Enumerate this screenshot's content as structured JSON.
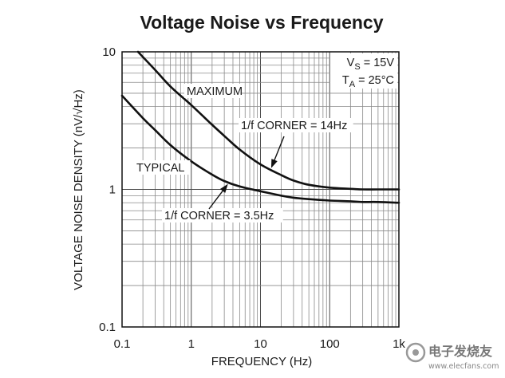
{
  "chart_data": {
    "type": "line",
    "title": "Voltage Noise vs Frequency",
    "xlabel": "FREQUENCY (Hz)",
    "ylabel": "VOLTAGE NOISE DENSITY (nV/√Hz)",
    "xscale": "log",
    "yscale": "log",
    "xlim": [
      0.1,
      1000
    ],
    "ylim": [
      0.1,
      10
    ],
    "grid": true,
    "x_ticks": [
      0.1,
      1,
      10,
      100,
      1000
    ],
    "x_tick_labels": [
      "0.1",
      "1",
      "10",
      "100",
      "1k"
    ],
    "y_ticks": [
      0.1,
      1,
      10
    ],
    "y_tick_labels": [
      "0.1",
      "1",
      "10"
    ],
    "conditions": [
      {
        "symbol": "V",
        "sub": "S",
        "value": " = 15V"
      },
      {
        "symbol": "T",
        "sub": "A",
        "value": " = 25°C"
      }
    ],
    "series": [
      {
        "name": "MAXIMUM",
        "x": [
          0.17,
          0.3,
          0.5,
          1,
          2,
          3,
          5,
          10,
          20,
          30,
          50,
          100,
          200,
          300,
          500,
          1000
        ],
        "values": [
          10,
          7.4,
          5.6,
          4.1,
          2.95,
          2.45,
          1.95,
          1.52,
          1.27,
          1.16,
          1.08,
          1.03,
          1.01,
          1.0,
          1.0,
          1.0
        ]
      },
      {
        "name": "TYPICAL",
        "x": [
          0.1,
          0.2,
          0.3,
          0.5,
          1,
          2,
          3,
          5,
          10,
          20,
          30,
          50,
          100,
          200,
          300,
          500,
          1000
        ],
        "values": [
          4.8,
          3.3,
          2.7,
          2.1,
          1.6,
          1.28,
          1.15,
          1.05,
          0.97,
          0.9,
          0.87,
          0.85,
          0.83,
          0.82,
          0.81,
          0.81,
          0.8
        ]
      }
    ],
    "annotations": [
      {
        "text": "1/f CORNER = 14Hz",
        "x": 14,
        "series": "MAXIMUM"
      },
      {
        "text": "1/f CORNER = 3.5Hz",
        "x": 3.5,
        "series": "TYPICAL"
      }
    ]
  },
  "watermark": {
    "main": "电子发烧友",
    "url": "www.elecfans.com"
  }
}
